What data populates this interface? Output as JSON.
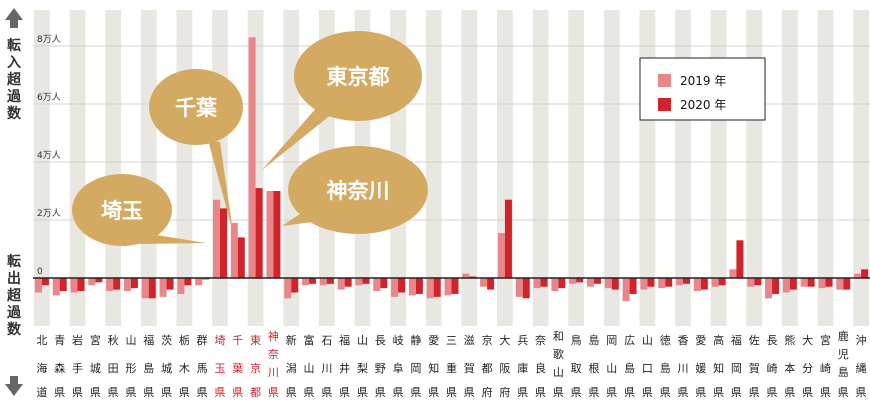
{
  "chart_data": {
    "type": "bar",
    "unit": "人",
    "side_labels": {
      "positive": "転入超過数",
      "negative": "転出超過数"
    },
    "yticks": [
      {
        "value": 0,
        "label": "0"
      },
      {
        "value": 20000,
        "label": "2万人"
      },
      {
        "value": 40000,
        "label": "4万人"
      },
      {
        "value": 60000,
        "label": "6万人"
      },
      {
        "value": 80000,
        "label": "8万人"
      }
    ],
    "ylim": [
      -11000,
      85000
    ],
    "categories": [
      "北海道",
      "青森県",
      "岩手県",
      "宮城県",
      "秋田県",
      "山形県",
      "福島県",
      "茨城県",
      "栃木県",
      "群馬県",
      "埼玉県",
      "千葉県",
      "東京都",
      "神奈川県",
      "新潟県",
      "富山県",
      "石川県",
      "福井県",
      "山梨県",
      "長野県",
      "岐阜県",
      "静岡県",
      "愛知県",
      "三重県",
      "滋賀県",
      "京都府",
      "大阪府",
      "兵庫県",
      "奈良県",
      "和歌山県",
      "鳥取県",
      "島根県",
      "岡山県",
      "広島県",
      "山口県",
      "徳島県",
      "香川県",
      "愛媛県",
      "高知県",
      "福岡県",
      "佐賀県",
      "長崎県",
      "熊本県",
      "大分県",
      "宮崎県",
      "鹿児島県",
      "沖縄県"
    ],
    "highlighted": [
      "埼玉県",
      "千葉県",
      "東京都",
      "神奈川県"
    ],
    "series": [
      {
        "name": "2019 年",
        "color": "#e8868a",
        "values": [
          -5000,
          -6000,
          -5000,
          -2500,
          -4500,
          -4500,
          -7000,
          -6500,
          -5500,
          -2500,
          27000,
          19000,
          83000,
          30000,
          -7000,
          -2500,
          -2500,
          -4000,
          -2500,
          -4500,
          -6500,
          -6000,
          -7000,
          -6000,
          1500,
          -3000,
          15500,
          -6500,
          -3500,
          -4500,
          -2000,
          -3000,
          -3500,
          -8000,
          -4000,
          -3500,
          -2500,
          -4500,
          -3000,
          3000,
          -3000,
          -7000,
          -5000,
          -3000,
          -3500,
          -4000,
          1500
        ]
      },
      {
        "name": "2020 年",
        "color": "#d2232a",
        "values": [
          -2500,
          -4500,
          -4500,
          -1500,
          -4000,
          -3500,
          -7000,
          -4000,
          -2500,
          -500,
          24000,
          14000,
          31000,
          30000,
          -5000,
          -2000,
          -2000,
          -3000,
          -2000,
          -3500,
          -5000,
          -5500,
          -6500,
          -5500,
          500,
          -4000,
          27000,
          -7000,
          -3000,
          -3500,
          -1500,
          -2000,
          -4000,
          -5500,
          -3000,
          -3000,
          -2000,
          -4000,
          -2500,
          13000,
          -2500,
          -5500,
          -4000,
          -3000,
          -3000,
          -4000,
          3000
        ]
      }
    ],
    "callouts": [
      "埼玉",
      "千葉",
      "東京都",
      "神奈川"
    ]
  }
}
